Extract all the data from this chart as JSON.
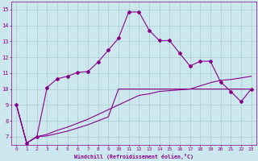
{
  "xlabel": "Windchill (Refroidissement éolien,°C)",
  "background_color": "#cce8ee",
  "grid_color": "#aacccc",
  "line_color": "#880088",
  "xlim": [
    -0.5,
    23.5
  ],
  "ylim": [
    6.5,
    15.5
  ],
  "xticks": [
    0,
    1,
    2,
    3,
    4,
    5,
    6,
    7,
    8,
    9,
    10,
    11,
    12,
    13,
    14,
    15,
    16,
    17,
    18,
    19,
    20,
    21,
    22,
    23
  ],
  "yticks": [
    7,
    8,
    9,
    10,
    11,
    12,
    13,
    14,
    15
  ],
  "series1_x": [
    0,
    1,
    2,
    3,
    4,
    5,
    6,
    7,
    8,
    9,
    10,
    11,
    12,
    13,
    14,
    15,
    16,
    17,
    18,
    19,
    20,
    21,
    22,
    23
  ],
  "series1_y": [
    9.0,
    6.6,
    7.0,
    10.1,
    10.65,
    10.8,
    11.05,
    11.1,
    11.7,
    12.45,
    13.2,
    14.85,
    14.85,
    13.7,
    13.05,
    13.05,
    12.25,
    11.45,
    11.75,
    11.75,
    10.45,
    9.85,
    9.2,
    10.0
  ],
  "series2_x": [
    0,
    1,
    2,
    3,
    4,
    5,
    6,
    7,
    8,
    9,
    10,
    11,
    12,
    13,
    14,
    15,
    16,
    17,
    18,
    19,
    20,
    21,
    22,
    23
  ],
  "series2_y": [
    9.0,
    6.6,
    7.0,
    7.15,
    7.4,
    7.6,
    7.85,
    8.1,
    8.4,
    8.7,
    9.0,
    9.3,
    9.6,
    9.7,
    9.85,
    9.9,
    9.95,
    10.0,
    10.2,
    10.4,
    10.55,
    10.6,
    10.7,
    10.8
  ],
  "series3_x": [
    0,
    1,
    2,
    3,
    4,
    5,
    6,
    7,
    8,
    9,
    10,
    11,
    12,
    13,
    14,
    15,
    16,
    17,
    18,
    19,
    20,
    21,
    22,
    23
  ],
  "series3_y": [
    9.0,
    6.6,
    7.0,
    7.05,
    7.2,
    7.35,
    7.55,
    7.75,
    8.0,
    8.25,
    10.0,
    10.0,
    10.0,
    10.0,
    10.0,
    10.0,
    10.0,
    10.0,
    10.0,
    10.0,
    10.0,
    10.0,
    10.0,
    10.0
  ]
}
